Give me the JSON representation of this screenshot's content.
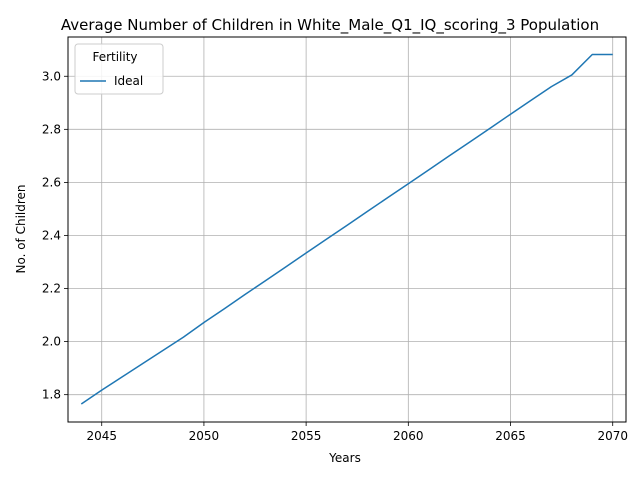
{
  "chart_data": {
    "type": "line",
    "title": "Average Number of Children in White_Male_Q1_IQ_scoring_3 Population",
    "xlabel": "Years",
    "ylabel": "No. of Children",
    "xlim": [
      2043.35,
      2070.65
    ],
    "ylim": [
      1.697,
      3.148
    ],
    "xticks": [
      2045,
      2050,
      2055,
      2060,
      2065,
      2070
    ],
    "yticks": [
      1.8,
      2.0,
      2.2,
      2.4,
      2.6,
      2.8,
      3.0
    ],
    "grid": true,
    "legend": {
      "title": "Fertility",
      "placement": "top-left"
    },
    "series": [
      {
        "name": "Ideal",
        "color": "#1f77b4",
        "x": [
          2044,
          2045,
          2046,
          2047,
          2048,
          2049,
          2050,
          2051,
          2052,
          2053,
          2054,
          2055,
          2056,
          2057,
          2058,
          2059,
          2060,
          2061,
          2062,
          2063,
          2064,
          2065,
          2066,
          2067,
          2068,
          2069,
          2070
        ],
        "y": [
          1.765,
          1.817,
          1.867,
          1.917,
          1.967,
          2.017,
          2.072,
          2.124,
          2.177,
          2.229,
          2.281,
          2.334,
          2.386,
          2.438,
          2.491,
          2.543,
          2.595,
          2.647,
          2.7,
          2.752,
          2.804,
          2.857,
          2.909,
          2.961,
          3.005,
          3.082,
          3.082
        ]
      }
    ]
  }
}
